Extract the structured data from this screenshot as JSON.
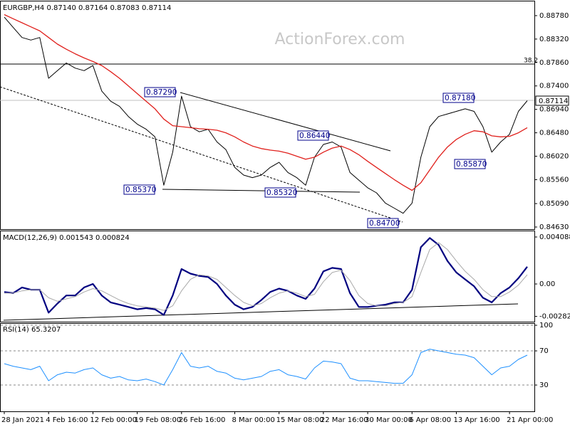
{
  "chart_data": [
    {
      "type": "line",
      "title": "EURGBP,H4  0.87140 0.87164 0.87083 0.87114",
      "watermark": "ActionForex.com",
      "categories": [
        "28 Jan 2021",
        null,
        null,
        null,
        null,
        "4 Feb 16:00",
        null,
        null,
        null,
        null,
        "12 Feb 00:00",
        null,
        null,
        null,
        null,
        "19 Feb 08:00",
        null,
        null,
        null,
        null,
        "26 Feb 16:00",
        null,
        null,
        null,
        null,
        null,
        "8 Mar 00:00",
        null,
        null,
        null,
        null,
        "15 Mar 08:00",
        null,
        null,
        null,
        null,
        "22 Mar 16:00",
        null,
        null,
        null,
        null,
        "30 Mar 00:00",
        null,
        null,
        null,
        null,
        "6 Apr 08:00",
        null,
        null,
        null,
        null,
        "13 Apr 16:00",
        null,
        null,
        null,
        null,
        null,
        "21 Apr 00:00",
        null,
        null
      ],
      "series": [
        {
          "name": "EURGBP",
          "color": "#000000",
          "values": [
            0.8875,
            0.8855,
            0.8835,
            0.883,
            0.8835,
            0.8755,
            0.877,
            0.8785,
            0.8775,
            0.877,
            0.878,
            0.873,
            0.871,
            0.87,
            0.868,
            0.8665,
            0.8655,
            0.864,
            0.8545,
            0.861,
            0.872,
            0.866,
            0.865,
            0.8655,
            0.863,
            0.8615,
            0.858,
            0.8565,
            0.856,
            0.8565,
            0.858,
            0.859,
            0.857,
            0.856,
            0.8545,
            0.86,
            0.8625,
            0.863,
            0.862,
            0.857,
            0.8555,
            0.854,
            0.853,
            0.851,
            0.85,
            0.849,
            0.851,
            0.86,
            0.866,
            0.868,
            0.8685,
            0.869,
            0.8695,
            0.869,
            0.866,
            0.861,
            0.863,
            0.8645,
            0.869,
            0.8711
          ]
        },
        {
          "name": "MA",
          "color": "#e0201c",
          "values": [
            0.888,
            0.8872,
            0.8864,
            0.8856,
            0.8848,
            0.8835,
            0.8822,
            0.8812,
            0.8803,
            0.8795,
            0.8788,
            0.878,
            0.8768,
            0.8755,
            0.874,
            0.8725,
            0.871,
            0.8695,
            0.8675,
            0.8662,
            0.866,
            0.8658,
            0.8656,
            0.8655,
            0.8653,
            0.8648,
            0.864,
            0.863,
            0.8622,
            0.8617,
            0.8614,
            0.8612,
            0.8608,
            0.8602,
            0.8596,
            0.86,
            0.861,
            0.8618,
            0.8622,
            0.8615,
            0.8605,
            0.8592,
            0.858,
            0.8568,
            0.8556,
            0.8545,
            0.8535,
            0.855,
            0.8575,
            0.86,
            0.862,
            0.8635,
            0.8645,
            0.8652,
            0.865,
            0.8642,
            0.864,
            0.8641,
            0.8648,
            0.8658
          ]
        }
      ],
      "ylim": [
        0.84588,
        0.89059
      ],
      "yticks": [
        {
          "value": 0.8878,
          "label": "0.88780"
        },
        {
          "value": 0.8832,
          "label": "0.88320"
        },
        {
          "value": 0.8786,
          "label": "0.87860"
        },
        {
          "value": 0.874,
          "label": "0.87400"
        },
        {
          "value": 0.8694,
          "label": "0.86940"
        },
        {
          "value": 0.8648,
          "label": "0.86480"
        },
        {
          "value": 0.8602,
          "label": "0.86020"
        },
        {
          "value": 0.8556,
          "label": "0.85560"
        },
        {
          "value": 0.8509,
          "label": "0.85090"
        },
        {
          "value": 0.8463,
          "label": "0.84630"
        }
      ],
      "annotations": [
        "0.87290",
        "0.85370",
        "0.85320",
        "0.86440",
        "0.84700",
        "0.87180",
        "0.85870"
      ],
      "fib_label": "38.2",
      "last_price_label": "0.87114"
    },
    {
      "type": "line",
      "title": "MACD(12,26,9) 0.001543 0.000824",
      "series": [
        {
          "name": "MACD",
          "color": "#000080",
          "values": [
            -0.0007,
            -0.0008,
            -0.0003,
            -0.0005,
            -0.0005,
            -0.0025,
            -0.0017,
            -0.001,
            -0.001,
            -0.0003,
            0,
            -0.001,
            -0.0016,
            -0.0018,
            -0.002,
            -0.0022,
            -0.0021,
            -0.0022,
            -0.0027,
            -0.001,
            0.0013,
            0.0009,
            0.0007,
            0.0006,
            0,
            -0.001,
            -0.0018,
            -0.0022,
            -0.002,
            -0.0014,
            -0.0007,
            -0.0004,
            -0.0006,
            -0.001,
            -0.0013,
            -0.0004,
            0.0011,
            0.0014,
            0.0013,
            -0.0008,
            -0.002,
            -0.002,
            -0.0019,
            -0.0018,
            -0.0016,
            -0.0016,
            -0.0005,
            0.0032,
            0.004,
            0.0034,
            0.002,
            0.001,
            0.0004,
            -0.0002,
            -0.0012,
            -0.0016,
            -0.0008,
            -0.0003,
            0.0005,
            0.0015
          ]
        },
        {
          "name": "Signal",
          "color": "#a9a9a9",
          "values": [
            -0.0008,
            -0.0008,
            -0.0006,
            -0.0005,
            -0.0005,
            -0.0012,
            -0.0015,
            -0.0013,
            -0.0011,
            -0.0007,
            -0.0004,
            -0.0006,
            -0.001,
            -0.0014,
            -0.0017,
            -0.0019,
            -0.002,
            -0.0021,
            -0.0023,
            -0.0019,
            -0.0006,
            0.0004,
            0.0008,
            0.0007,
            0.0004,
            -0.0003,
            -0.001,
            -0.0016,
            -0.0019,
            -0.0017,
            -0.0012,
            -0.0008,
            -0.0006,
            -0.0008,
            -0.0011,
            -0.0009,
            0.0002,
            0.001,
            0.0012,
            0.0003,
            -0.001,
            -0.0017,
            -0.0019,
            -0.0019,
            -0.0017,
            -0.0016,
            -0.0011,
            0.001,
            0.003,
            0.0036,
            0.003,
            0.002,
            0.0011,
            0.0004,
            -0.0005,
            -0.0011,
            -0.0011,
            -0.0007,
            -0.0001,
            0.0008
          ]
        }
      ],
      "ylim": [
        -0.00328,
        0.004583
      ],
      "yticks": [
        0.004088,
        {
          "value": 0,
          "label": "0.00"
        },
        -0.00282
      ]
    },
    {
      "type": "line",
      "title": "RSI(14) 65.3207",
      "series": [
        {
          "name": "RSI",
          "color": "#1e90ff",
          "values": [
            55,
            52,
            50,
            48,
            52,
            35,
            42,
            45,
            44,
            48,
            50,
            42,
            38,
            40,
            36,
            35,
            37,
            34,
            30,
            48,
            68,
            52,
            50,
            52,
            46,
            44,
            38,
            36,
            38,
            40,
            46,
            48,
            42,
            40,
            37,
            50,
            58,
            57,
            55,
            38,
            35,
            35,
            34,
            33,
            32,
            32,
            42,
            68,
            72,
            70,
            68,
            66,
            65,
            62,
            52,
            42,
            50,
            52,
            60,
            65
          ]
        }
      ],
      "ylim": [
        -0.8,
        101.7
      ],
      "yticks": [
        100,
        70,
        30
      ]
    }
  ]
}
